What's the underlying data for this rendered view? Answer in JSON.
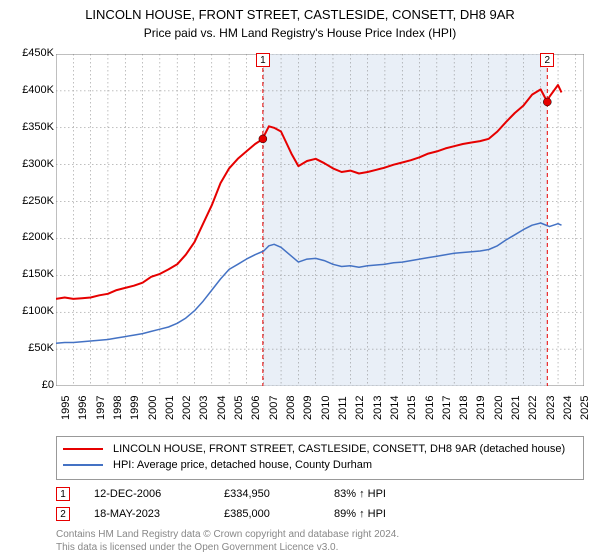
{
  "title": "LINCOLN HOUSE, FRONT STREET, CASTLESIDE, CONSETT, DH8 9AR",
  "subtitle": "Price paid vs. HM Land Registry's House Price Index (HPI)",
  "chart": {
    "type": "line",
    "background_color": "#ffffff",
    "grid_color": "#7f7f7f",
    "shade_color": "#dbe5f1",
    "xlim": [
      1995,
      2025.5
    ],
    "ylim": [
      0,
      450000
    ],
    "yticks": [
      0,
      50000,
      100000,
      150000,
      200000,
      250000,
      300000,
      350000,
      400000,
      450000
    ],
    "ytick_labels": [
      "£0",
      "£50K",
      "£100K",
      "£150K",
      "£200K",
      "£250K",
      "£300K",
      "£350K",
      "£400K",
      "£450K"
    ],
    "xticks": [
      1995,
      1996,
      1997,
      1998,
      1999,
      2000,
      2001,
      2002,
      2003,
      2004,
      2005,
      2006,
      2007,
      2008,
      2009,
      2010,
      2011,
      2012,
      2013,
      2014,
      2015,
      2016,
      2017,
      2018,
      2019,
      2020,
      2021,
      2022,
      2023,
      2024,
      2025
    ],
    "series": [
      {
        "name": "lincoln_house",
        "label": "LINCOLN HOUSE, FRONT STREET, CASTLESIDE, CONSETT, DH8 9AR (detached house)",
        "color": "#e60000",
        "line_width": 2,
        "points": [
          [
            1995.0,
            118000
          ],
          [
            1995.5,
            120000
          ],
          [
            1996.0,
            118000
          ],
          [
            1996.5,
            119000
          ],
          [
            1997.0,
            120000
          ],
          [
            1997.5,
            123000
          ],
          [
            1998.0,
            125000
          ],
          [
            1998.5,
            130000
          ],
          [
            1999.0,
            133000
          ],
          [
            1999.5,
            136000
          ],
          [
            2000.0,
            140000
          ],
          [
            2000.5,
            148000
          ],
          [
            2001.0,
            152000
          ],
          [
            2001.5,
            158000
          ],
          [
            2002.0,
            165000
          ],
          [
            2002.5,
            178000
          ],
          [
            2003.0,
            195000
          ],
          [
            2003.5,
            220000
          ],
          [
            2004.0,
            245000
          ],
          [
            2004.5,
            275000
          ],
          [
            2005.0,
            295000
          ],
          [
            2005.5,
            308000
          ],
          [
            2006.0,
            318000
          ],
          [
            2006.5,
            328000
          ],
          [
            2006.95,
            334950
          ],
          [
            2007.0,
            338000
          ],
          [
            2007.3,
            352000
          ],
          [
            2007.6,
            350000
          ],
          [
            2008.0,
            345000
          ],
          [
            2008.3,
            330000
          ],
          [
            2008.6,
            315000
          ],
          [
            2009.0,
            298000
          ],
          [
            2009.5,
            305000
          ],
          [
            2010.0,
            308000
          ],
          [
            2010.5,
            302000
          ],
          [
            2011.0,
            295000
          ],
          [
            2011.5,
            290000
          ],
          [
            2012.0,
            292000
          ],
          [
            2012.5,
            288000
          ],
          [
            2013.0,
            290000
          ],
          [
            2013.5,
            293000
          ],
          [
            2014.0,
            296000
          ],
          [
            2014.5,
            300000
          ],
          [
            2015.0,
            303000
          ],
          [
            2015.5,
            306000
          ],
          [
            2016.0,
            310000
          ],
          [
            2016.5,
            315000
          ],
          [
            2017.0,
            318000
          ],
          [
            2017.5,
            322000
          ],
          [
            2018.0,
            325000
          ],
          [
            2018.5,
            328000
          ],
          [
            2019.0,
            330000
          ],
          [
            2019.5,
            332000
          ],
          [
            2020.0,
            335000
          ],
          [
            2020.5,
            345000
          ],
          [
            2021.0,
            358000
          ],
          [
            2021.5,
            370000
          ],
          [
            2022.0,
            380000
          ],
          [
            2022.5,
            395000
          ],
          [
            2023.0,
            402000
          ],
          [
            2023.38,
            385000
          ],
          [
            2023.5,
            392000
          ],
          [
            2024.0,
            408000
          ],
          [
            2024.2,
            398000
          ]
        ]
      },
      {
        "name": "hpi",
        "label": "HPI: Average price, detached house, County Durham",
        "color": "#4472c4",
        "line_width": 1.5,
        "points": [
          [
            1995.0,
            58000
          ],
          [
            1995.5,
            59000
          ],
          [
            1996.0,
            59000
          ],
          [
            1996.5,
            60000
          ],
          [
            1997.0,
            61000
          ],
          [
            1997.5,
            62000
          ],
          [
            1998.0,
            63000
          ],
          [
            1998.5,
            65000
          ],
          [
            1999.0,
            67000
          ],
          [
            1999.5,
            69000
          ],
          [
            2000.0,
            71000
          ],
          [
            2000.5,
            74000
          ],
          [
            2001.0,
            77000
          ],
          [
            2001.5,
            80000
          ],
          [
            2002.0,
            85000
          ],
          [
            2002.5,
            92000
          ],
          [
            2003.0,
            102000
          ],
          [
            2003.5,
            115000
          ],
          [
            2004.0,
            130000
          ],
          [
            2004.5,
            145000
          ],
          [
            2005.0,
            158000
          ],
          [
            2005.5,
            165000
          ],
          [
            2006.0,
            172000
          ],
          [
            2006.5,
            178000
          ],
          [
            2007.0,
            183000
          ],
          [
            2007.3,
            190000
          ],
          [
            2007.6,
            192000
          ],
          [
            2008.0,
            188000
          ],
          [
            2008.5,
            178000
          ],
          [
            2009.0,
            168000
          ],
          [
            2009.5,
            172000
          ],
          [
            2010.0,
            173000
          ],
          [
            2010.5,
            170000
          ],
          [
            2011.0,
            165000
          ],
          [
            2011.5,
            162000
          ],
          [
            2012.0,
            163000
          ],
          [
            2012.5,
            161000
          ],
          [
            2013.0,
            163000
          ],
          [
            2013.5,
            164000
          ],
          [
            2014.0,
            165000
          ],
          [
            2014.5,
            167000
          ],
          [
            2015.0,
            168000
          ],
          [
            2015.5,
            170000
          ],
          [
            2016.0,
            172000
          ],
          [
            2016.5,
            174000
          ],
          [
            2017.0,
            176000
          ],
          [
            2017.5,
            178000
          ],
          [
            2018.0,
            180000
          ],
          [
            2018.5,
            181000
          ],
          [
            2019.0,
            182000
          ],
          [
            2019.5,
            183000
          ],
          [
            2020.0,
            185000
          ],
          [
            2020.5,
            190000
          ],
          [
            2021.0,
            198000
          ],
          [
            2021.5,
            205000
          ],
          [
            2022.0,
            212000
          ],
          [
            2022.5,
            218000
          ],
          [
            2023.0,
            221000
          ],
          [
            2023.5,
            216000
          ],
          [
            2024.0,
            220000
          ],
          [
            2024.2,
            218000
          ]
        ]
      }
    ],
    "markers": [
      {
        "n": "1",
        "x": 2006.95,
        "y": 334950,
        "color": "#e60000",
        "date": "12-DEC-2006",
        "price": "£334,950",
        "pct": "83% ↑ HPI"
      },
      {
        "n": "2",
        "x": 2023.38,
        "y": 385000,
        "color": "#e60000",
        "date": "18-MAY-2023",
        "price": "£385,000",
        "pct": "89% ↑ HPI"
      }
    ]
  },
  "footer": {
    "line1": "Contains HM Land Registry data © Crown copyright and database right 2024.",
    "line2": "This data is licensed under the Open Government Licence v3.0."
  }
}
